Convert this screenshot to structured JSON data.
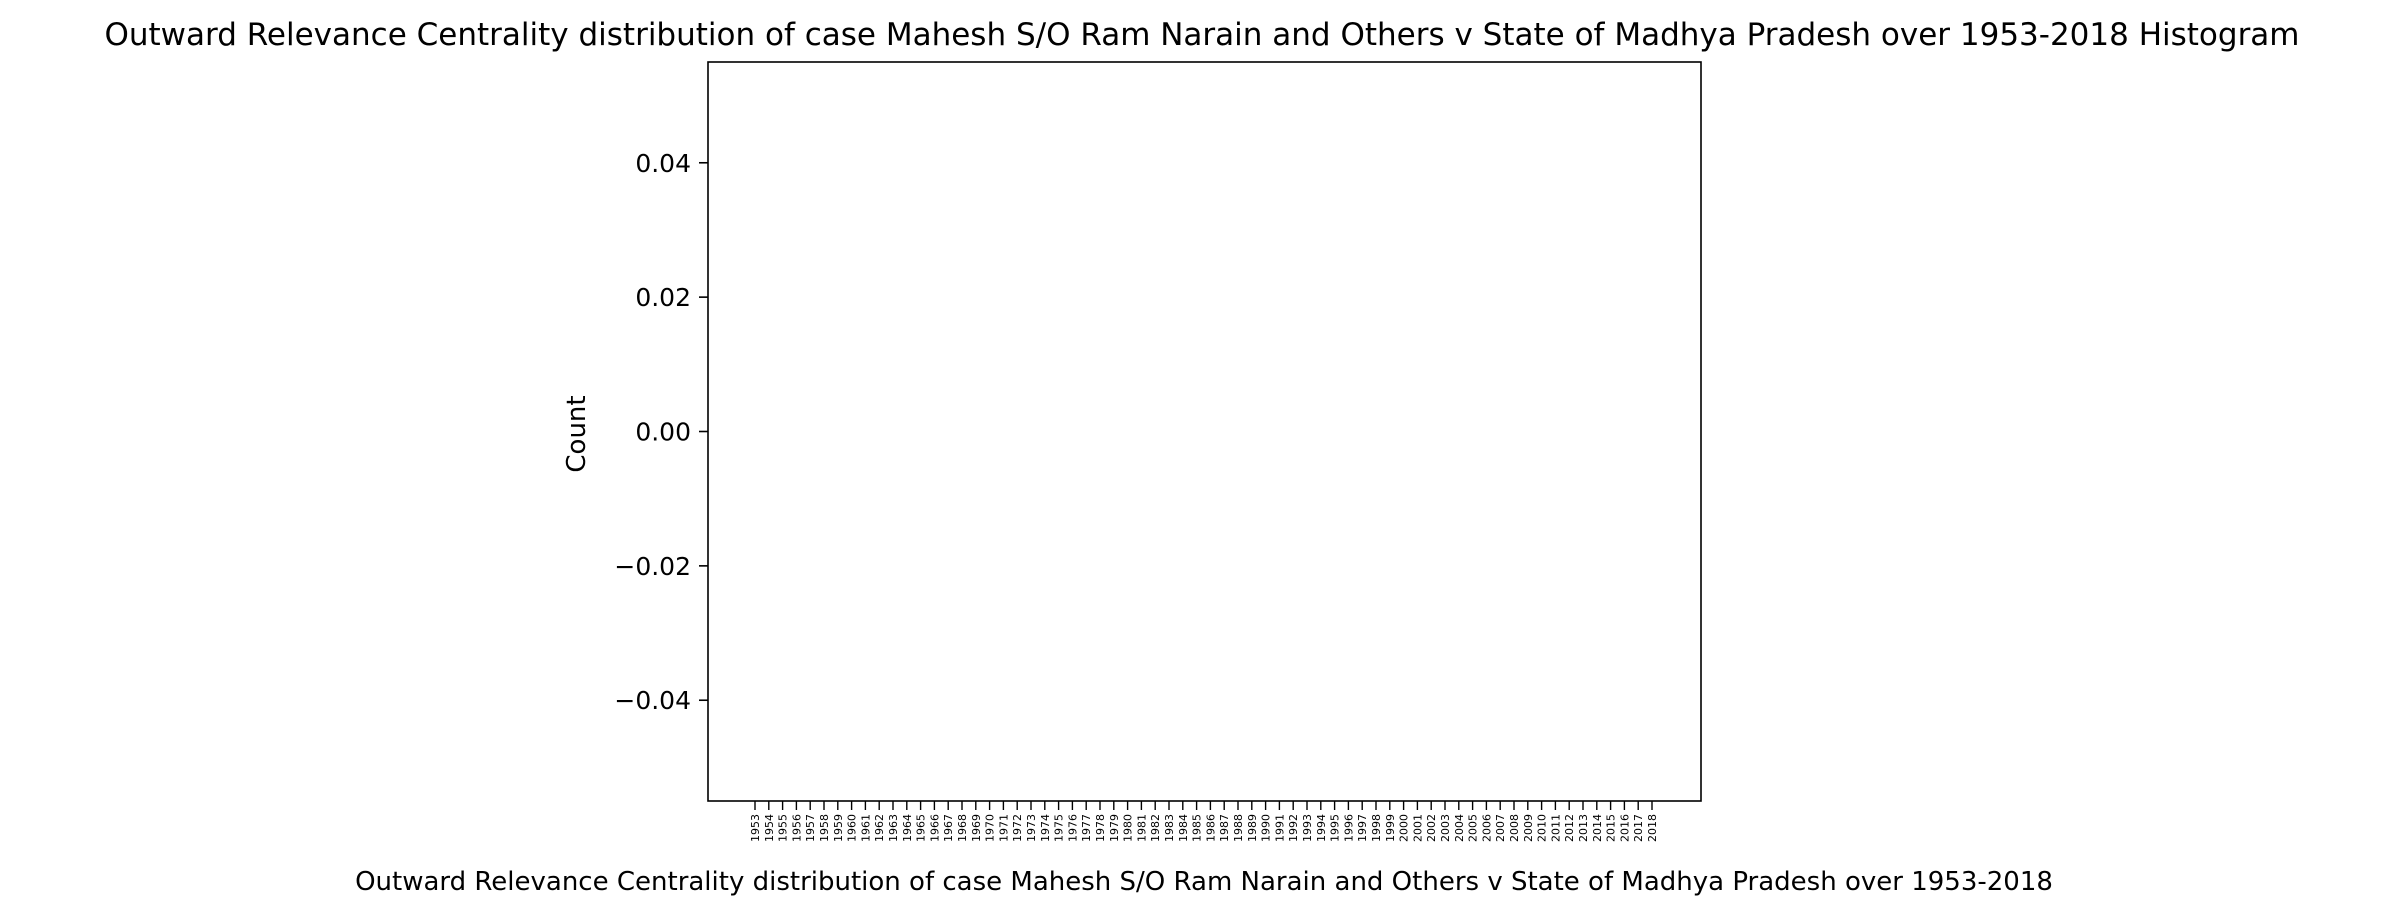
{
  "chart_data": {
    "type": "bar",
    "title": "Outward Relevance Centrality distribution of case Mahesh S/O Ram Narain and Others v State of Madhya Pradesh over 1953-2018 Histogram",
    "xlabel": "Outward Relevance Centrality distribution of case Mahesh S/O Ram Narain and Others v State of Madhya Pradesh over 1953-2018",
    "ylabel": "Count",
    "ylim": [
      -0.055,
      0.055
    ],
    "yticks": [
      -0.04,
      -0.02,
      0.0,
      0.02,
      0.04
    ],
    "ytick_labels": [
      "−0.04",
      "−0.02",
      "0.00",
      "0.02",
      "0.04"
    ],
    "categories": [
      "1953",
      "1954",
      "1955",
      "1956",
      "1957",
      "1958",
      "1959",
      "1960",
      "1961",
      "1962",
      "1963",
      "1964",
      "1965",
      "1966",
      "1967",
      "1968",
      "1969",
      "1970",
      "1971",
      "1972",
      "1973",
      "1974",
      "1975",
      "1976",
      "1977",
      "1978",
      "1979",
      "1980",
      "1981",
      "1982",
      "1983",
      "1984",
      "1985",
      "1986",
      "1987",
      "1988",
      "1989",
      "1990",
      "1991",
      "1992",
      "1993",
      "1994",
      "1995",
      "1996",
      "1997",
      "1998",
      "1999",
      "2000",
      "2001",
      "2002",
      "2003",
      "2004",
      "2005",
      "2006",
      "2007",
      "2008",
      "2009",
      "2010",
      "2011",
      "2012",
      "2013",
      "2014",
      "2015",
      "2016",
      "2017",
      "2018"
    ],
    "values": [
      0,
      0,
      0,
      0,
      0,
      0,
      0,
      0,
      0,
      0,
      0,
      0,
      0,
      0,
      0,
      0,
      0,
      0,
      0,
      0,
      0,
      0,
      0,
      0,
      0,
      0,
      0,
      0,
      0,
      0,
      0,
      0,
      0,
      0,
      0,
      0,
      0,
      0,
      0,
      0,
      0,
      0,
      0,
      0,
      0,
      0,
      0,
      0,
      0,
      0,
      0,
      0,
      0,
      0,
      0,
      0,
      0,
      0,
      0,
      0,
      0,
      0,
      0,
      0,
      0,
      0
    ],
    "grid": false,
    "legend": "none"
  }
}
